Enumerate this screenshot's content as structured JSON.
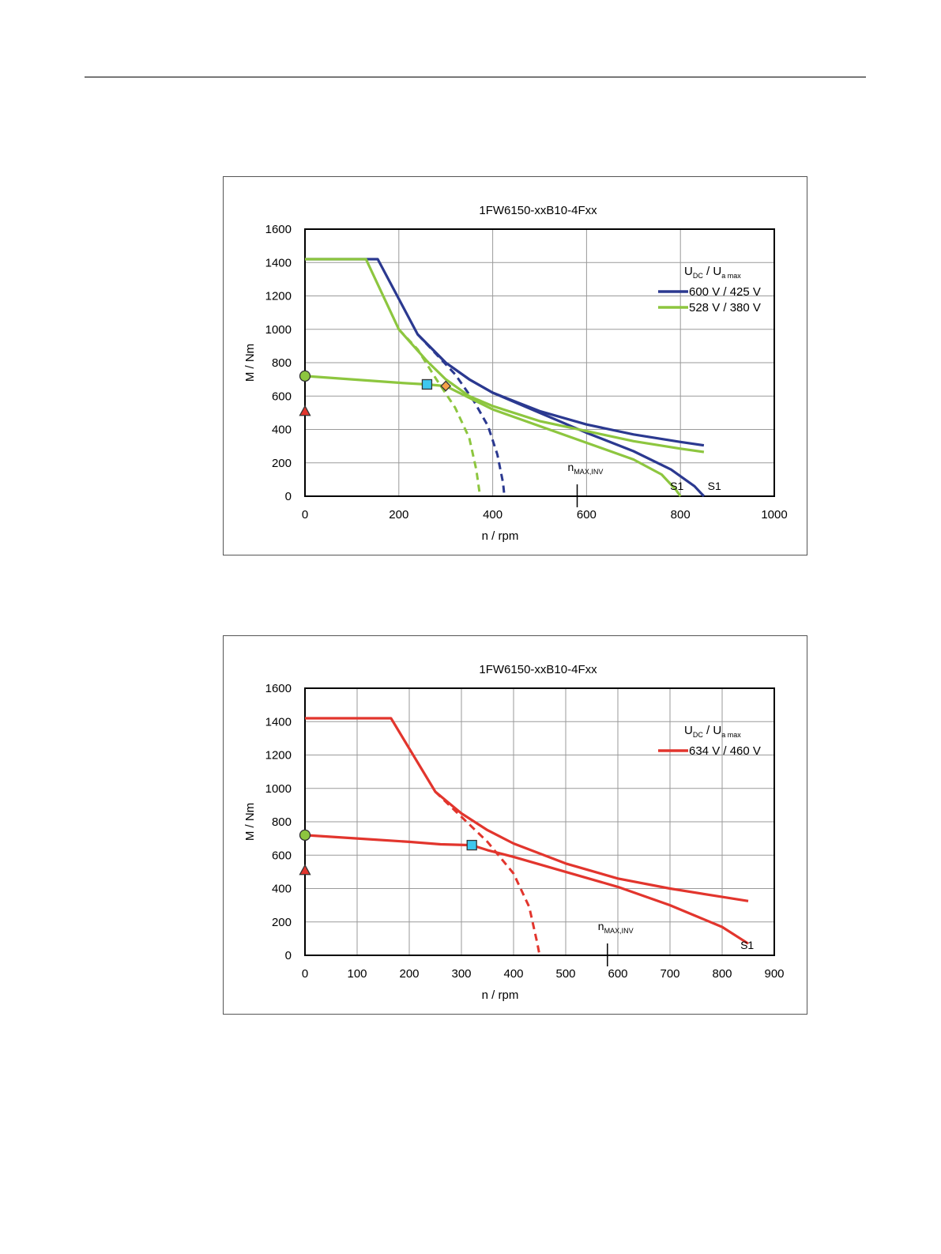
{
  "chart_data": [
    {
      "type": "line",
      "title": "1FW6150-xxB10-4Fxx",
      "xlabel": "n / rpm",
      "ylabel": "M / Nm",
      "xlim": [
        0,
        1000
      ],
      "ylim": [
        0,
        1600
      ],
      "xticks": [
        0,
        200,
        400,
        600,
        800,
        1000
      ],
      "yticks": [
        0,
        200,
        400,
        600,
        800,
        1000,
        1200,
        1400,
        1600
      ],
      "grid": true,
      "legend_placement": "top-right",
      "legend_header": {
        "main1": "U",
        "sub1": "DC",
        "sep": "/",
        "main2": "U",
        "sub2": "a max"
      },
      "annotations": {
        "nmax_main": "n",
        "nmax_sub": "MAX,INV",
        "nmax_x": 580,
        "s1_label": "S1"
      },
      "series": [
        {
          "name": "600 V / 425 V",
          "color": "#2b3990",
          "upper": [
            [
              0,
              1420
            ],
            [
              155,
              1420
            ],
            [
              240,
              970
            ],
            [
              300,
              800
            ],
            [
              350,
              700
            ],
            [
              400,
              620
            ],
            [
              500,
              510
            ],
            [
              600,
              430
            ],
            [
              700,
              370
            ],
            [
              800,
              325
            ],
            [
              850,
              305
            ]
          ],
          "s1": [
            [
              240,
              970
            ],
            [
              300,
              800
            ],
            [
              350,
              700
            ],
            [
              400,
              620
            ],
            [
              500,
              500
            ],
            [
              600,
              380
            ],
            [
              700,
              270
            ],
            [
              780,
              160
            ],
            [
              830,
              60
            ],
            [
              850,
              0
            ]
          ],
          "dashed": [
            [
              240,
              970
            ],
            [
              280,
              850
            ],
            [
              320,
              730
            ],
            [
              360,
              570
            ],
            [
              390,
              420
            ],
            [
              410,
              250
            ],
            [
              422,
              80
            ],
            [
              425,
              0
            ]
          ],
          "s1_label_x": 858
        },
        {
          "name": "528 V / 380 V",
          "color": "#8dc63f",
          "upper": [
            [
              0,
              1420
            ],
            [
              130,
              1420
            ],
            [
              200,
              1000
            ],
            [
              260,
              810
            ],
            [
              300,
              700
            ],
            [
              350,
              600
            ],
            [
              400,
              540
            ],
            [
              500,
              450
            ],
            [
              600,
              390
            ],
            [
              700,
              330
            ],
            [
              800,
              285
            ],
            [
              850,
              265
            ]
          ],
          "s1": [
            [
              0,
              720
            ],
            [
              100,
              700
            ],
            [
              200,
              680
            ],
            [
              260,
              670
            ],
            [
              300,
              660
            ],
            [
              350,
              590
            ],
            [
              400,
              520
            ],
            [
              500,
              420
            ],
            [
              600,
              320
            ],
            [
              700,
              220
            ],
            [
              760,
              130
            ],
            [
              790,
              40
            ],
            [
              800,
              0
            ]
          ],
          "dashed": [
            [
              200,
              1000
            ],
            [
              240,
              880
            ],
            [
              280,
              700
            ],
            [
              320,
              530
            ],
            [
              350,
              350
            ],
            [
              365,
              160
            ],
            [
              373,
              0
            ]
          ],
          "s1_label_x": 778
        }
      ],
      "markers": [
        {
          "shape": "circle",
          "x": 0,
          "y": 720,
          "color": "#8dc63f"
        },
        {
          "shape": "triangle",
          "x": 0,
          "y": 510,
          "color": "#e2352d"
        },
        {
          "shape": "square",
          "x": 260,
          "y": 670,
          "color": "#3ec7ee"
        },
        {
          "shape": "diamond",
          "x": 300,
          "y": 660,
          "color": "#f5a04a"
        }
      ]
    },
    {
      "type": "line",
      "title": "1FW6150-xxB10-4Fxx",
      "xlabel": "n / rpm",
      "ylabel": "M / Nm",
      "xlim": [
        0,
        900
      ],
      "ylim": [
        0,
        1600
      ],
      "xticks": [
        0,
        100,
        200,
        300,
        400,
        500,
        600,
        700,
        800,
        900
      ],
      "yticks": [
        0,
        200,
        400,
        600,
        800,
        1000,
        1200,
        1400,
        1600
      ],
      "grid": true,
      "legend_placement": "top-right",
      "legend_header": {
        "main1": "U",
        "sub1": "DC",
        "sep": "/",
        "main2": "U",
        "sub2": "a max"
      },
      "annotations": {
        "nmax_main": "n",
        "nmax_sub": "MAX,INV",
        "nmax_x": 580,
        "s1_label": "S1"
      },
      "series": [
        {
          "name": "634 V / 460 V",
          "color": "#e2352d",
          "upper": [
            [
              0,
              1420
            ],
            [
              165,
              1420
            ],
            [
              250,
              980
            ],
            [
              300,
              850
            ],
            [
              350,
              750
            ],
            [
              400,
              670
            ],
            [
              500,
              550
            ],
            [
              600,
              460
            ],
            [
              700,
              400
            ],
            [
              800,
              350
            ],
            [
              850,
              325
            ]
          ],
          "s1": [
            [
              0,
              720
            ],
            [
              100,
              700
            ],
            [
              200,
              680
            ],
            [
              260,
              665
            ],
            [
              320,
              660
            ],
            [
              350,
              630
            ],
            [
              400,
              590
            ],
            [
              500,
              500
            ],
            [
              600,
              410
            ],
            [
              700,
              300
            ],
            [
              800,
              170
            ],
            [
              850,
              70
            ]
          ],
          "dashed": [
            [
              250,
              980
            ],
            [
              300,
              830
            ],
            [
              350,
              680
            ],
            [
              400,
              490
            ],
            [
              430,
              290
            ],
            [
              445,
              80
            ],
            [
              450,
              0
            ]
          ],
          "s1_label_x": 835
        }
      ],
      "markers": [
        {
          "shape": "circle",
          "x": 0,
          "y": 720,
          "color": "#8dc63f"
        },
        {
          "shape": "triangle",
          "x": 0,
          "y": 510,
          "color": "#e2352d"
        },
        {
          "shape": "square",
          "x": 320,
          "y": 660,
          "color": "#3ec7ee"
        }
      ]
    }
  ]
}
